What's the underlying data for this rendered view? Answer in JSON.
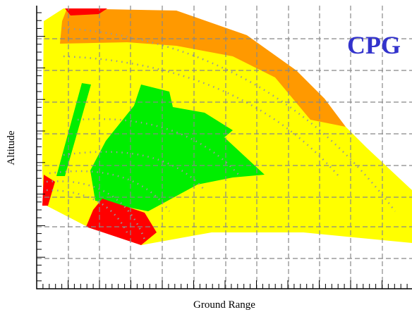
{
  "label": "CPG",
  "x_label": "Ground Range",
  "y_label": "Altitude"
}
